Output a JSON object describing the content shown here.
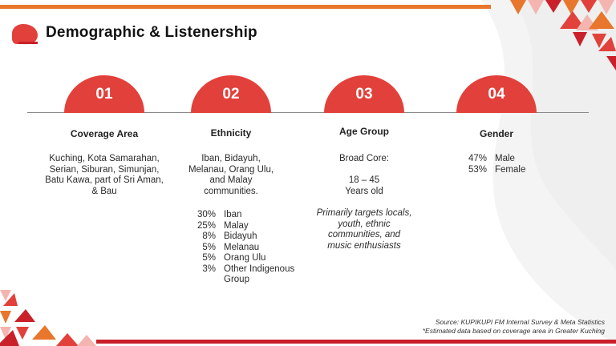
{
  "header": {
    "title": "Demographic & Listenership"
  },
  "columns": [
    {
      "number": "01",
      "heading": "Coverage Area",
      "lines": [
        "Kuching, Kota Samarahan,",
        "Serian, Siburan, Simunjan,",
        "Batu Kawa, part of Sri Aman,",
        "& Bau"
      ]
    },
    {
      "number": "02",
      "heading": "Ethnicity",
      "lines": [
        "Iban, Bidayuh,",
        "Melanau, Orang Ulu,",
        "and Malay",
        "communities."
      ],
      "breakdown": [
        {
          "pct": "30%",
          "label": "Iban"
        },
        {
          "pct": "25%",
          "label": "Malay"
        },
        {
          "pct": "8%",
          "label": "Bidayuh"
        },
        {
          "pct": "5%",
          "label": "Melanau"
        },
        {
          "pct": "5%",
          "label": "Orang Ulu"
        },
        {
          "pct": "3%",
          "label": "Other Indigenous",
          "label2": "Group"
        }
      ]
    },
    {
      "number": "03",
      "heading": "Age Group",
      "lines": [
        "Broad Core:"
      ],
      "range": [
        "18 – 45",
        "Years old"
      ],
      "italic_lines": [
        "Primarily targets locals,",
        "youth, ethnic",
        "communities, and",
        "music enthusiasts"
      ]
    },
    {
      "number": "04",
      "heading": "Gender",
      "breakdown": [
        {
          "pct": "47%",
          "label": "Male"
        },
        {
          "pct": "53%",
          "label": "Female"
        }
      ]
    }
  ],
  "footer": {
    "source": "Source: KUPIKUPI FM Internal Survey & Meta Statistics",
    "note": "*Estimated data based on coverage area in Greater Kuching"
  },
  "colors": {
    "accent_red": "#e2413b",
    "orange": "#e8762c",
    "dark_red": "#c9202a"
  }
}
